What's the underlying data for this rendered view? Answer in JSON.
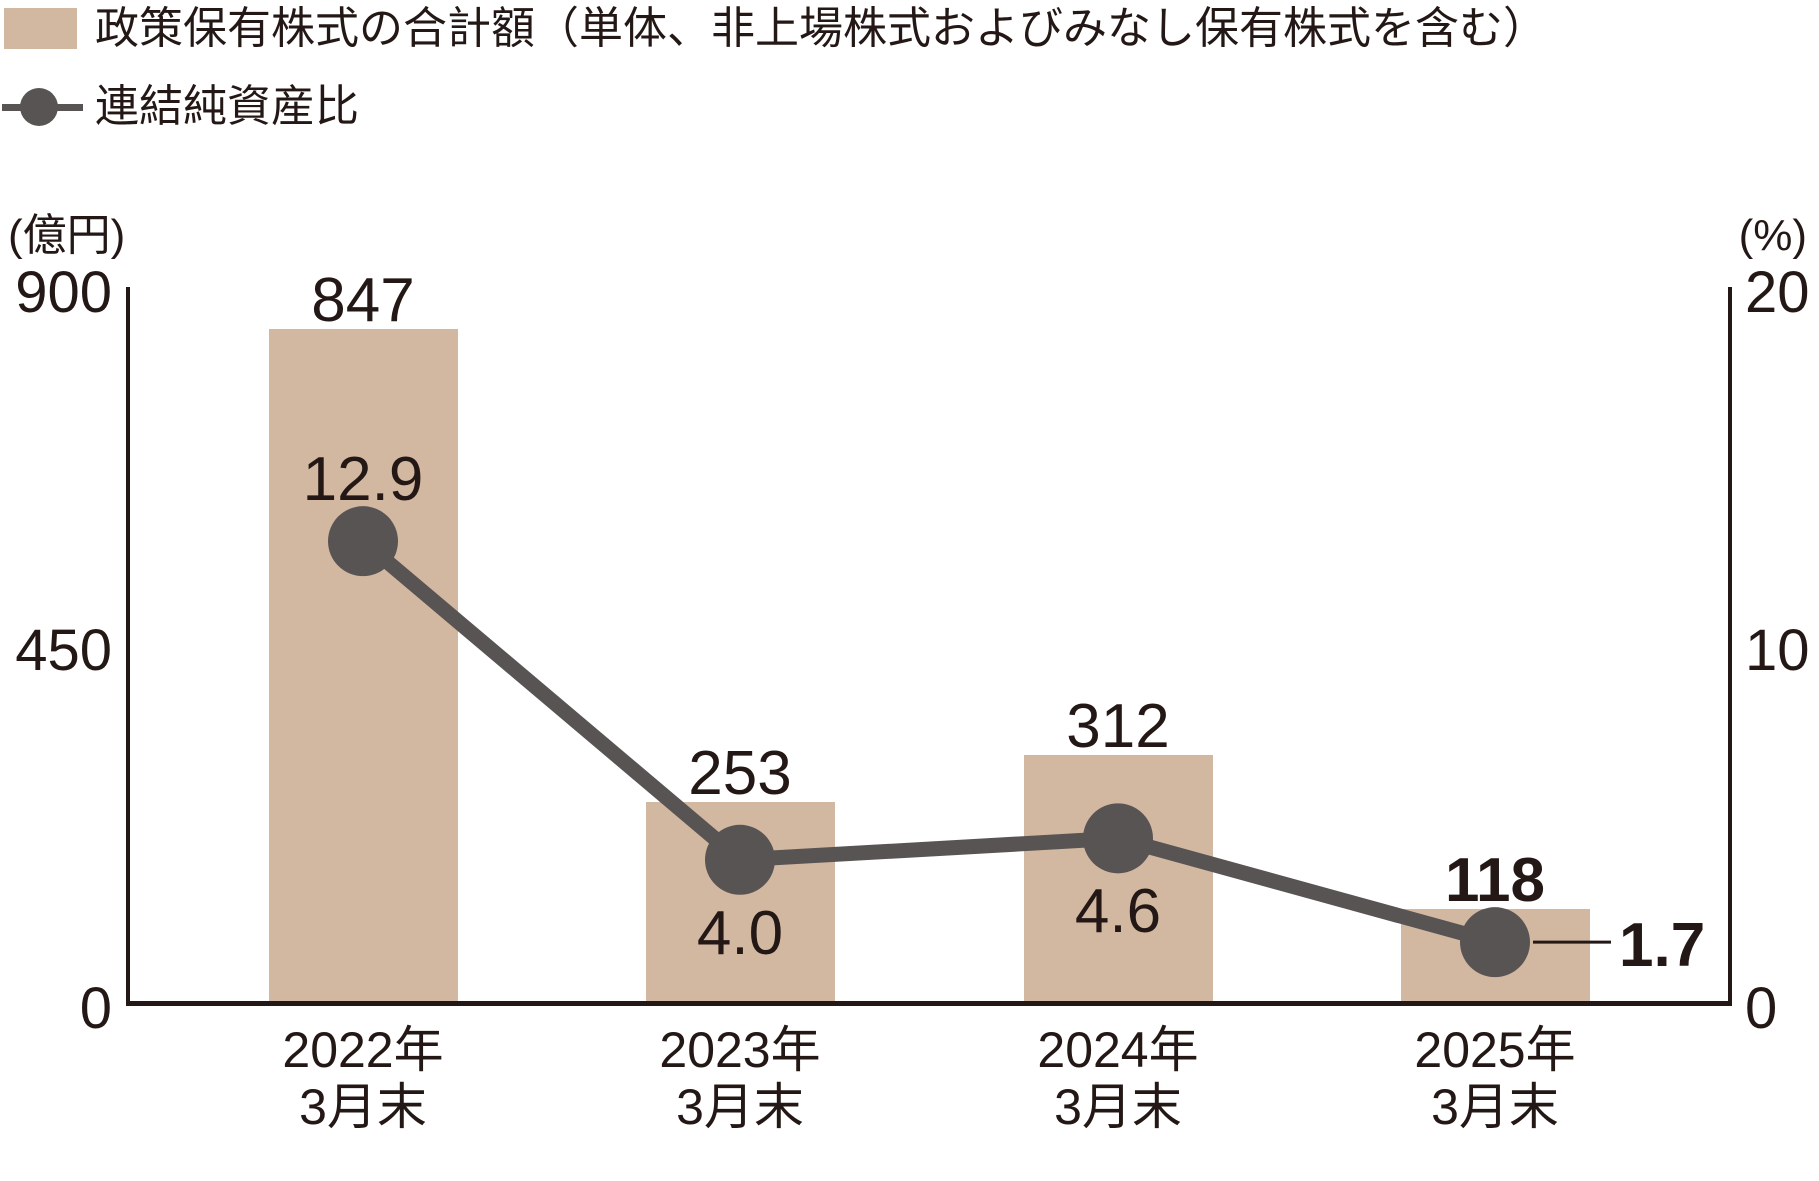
{
  "legend": {
    "bar_label": "政策保有株式の合計額（単体、非上場株式およびみなし保有株式を含む）",
    "line_label": "連結純資産比"
  },
  "chart_data": {
    "type": "combo-bar-line",
    "categories": [
      [
        "2022年",
        "3月末"
      ],
      [
        "2023年",
        "3月末"
      ],
      [
        "2024年",
        "3月末"
      ],
      [
        "2025年",
        "3月末"
      ]
    ],
    "series": [
      {
        "name": "政策保有株式の合計額（単体、非上場株式およびみなし保有株式を含む）",
        "type": "bar",
        "axis": "left",
        "values": [
          847,
          253,
          312,
          118
        ],
        "labels": [
          "847",
          "253",
          "312",
          "118"
        ],
        "emphasized": [
          false,
          false,
          false,
          true
        ]
      },
      {
        "name": "連結純資産比",
        "type": "line",
        "axis": "right",
        "values": [
          12.9,
          4.0,
          4.6,
          1.7
        ],
        "labels": [
          "12.9",
          "4.0",
          "4.6",
          "1.7"
        ],
        "label_positions": [
          "above",
          "below",
          "below",
          "right"
        ],
        "emphasized": [
          false,
          false,
          false,
          true
        ]
      }
    ],
    "left_axis": {
      "unit": "(億円)",
      "min": 0,
      "max": 900,
      "ticks": [
        900,
        450,
        0
      ]
    },
    "right_axis": {
      "unit": "(%)",
      "min": 0,
      "max": 20,
      "ticks": [
        20,
        10,
        0
      ]
    },
    "grid": false,
    "legend_position": "top-left"
  },
  "colors": {
    "bar": "#d3b8a1",
    "line": "#595454",
    "text": "#231815",
    "background": "#ffffff"
  }
}
